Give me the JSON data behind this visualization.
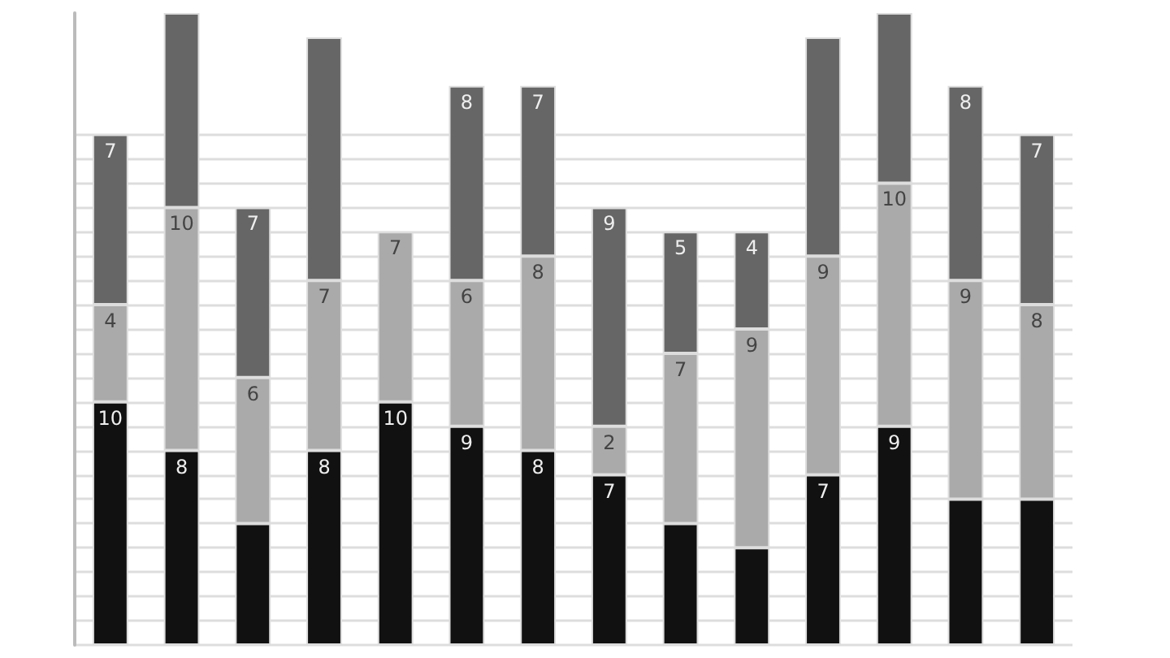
{
  "chart_data": {
    "type": "bar",
    "stacked": true,
    "categories": [
      null,
      null,
      null,
      null,
      null,
      null,
      null,
      null,
      null,
      null,
      null,
      null,
      null,
      null
    ],
    "series": [
      {
        "color": "#111111",
        "values": [
          10,
          8,
          5,
          8,
          10,
          9,
          8,
          7,
          5,
          4,
          7,
          9,
          6,
          6
        ],
        "value_labels": [
          "10",
          "8",
          null,
          "8",
          "10",
          "9",
          "8",
          "7",
          null,
          null,
          "7",
          "9",
          null,
          null
        ]
      },
      {
        "color": "#aaaaaa",
        "values": [
          4,
          10,
          6,
          7,
          7,
          6,
          8,
          2,
          7,
          9,
          9,
          10,
          9,
          8
        ],
        "value_labels": [
          "4",
          "10",
          "6",
          "7",
          "7",
          "6",
          "8",
          "2",
          "7",
          "9",
          "9",
          "10",
          "9",
          "8"
        ]
      },
      {
        "color": "#666666",
        "values": [
          7,
          8,
          7,
          10,
          null,
          8,
          7,
          9,
          5,
          4,
          9,
          7,
          8,
          7
        ],
        "value_labels": [
          "7",
          null,
          "7",
          null,
          null,
          "8",
          "7",
          "9",
          "5",
          "4",
          null,
          null,
          "8",
          "7"
        ]
      }
    ],
    "ylim": [
      0,
      26
    ],
    "yticks": [
      {
        "value": 0,
        "label": null
      },
      {
        "value": 1,
        "label": null
      },
      {
        "value": 2,
        "label": null
      },
      {
        "value": 3,
        "label": null
      },
      {
        "value": 4,
        "label": null
      },
      {
        "value": 5,
        "label": null
      },
      {
        "value": 6,
        "label": null
      },
      {
        "value": 7,
        "label": null
      },
      {
        "value": 8,
        "label": null
      },
      {
        "value": 9,
        "label": null
      },
      {
        "value": 10,
        "label": null
      },
      {
        "value": 11,
        "label": null
      },
      {
        "value": 12,
        "label": null
      },
      {
        "value": 13,
        "label": null
      },
      {
        "value": 14,
        "label": null
      },
      {
        "value": 15,
        "label": null
      },
      {
        "value": 16,
        "label": null
      },
      {
        "value": 17,
        "label": null
      },
      {
        "value": 18,
        "label": null
      },
      {
        "value": 19,
        "label": null
      },
      {
        "value": 20,
        "label": null
      },
      {
        "value": 21,
        "label": null
      }
    ],
    "grid": "y"
  }
}
